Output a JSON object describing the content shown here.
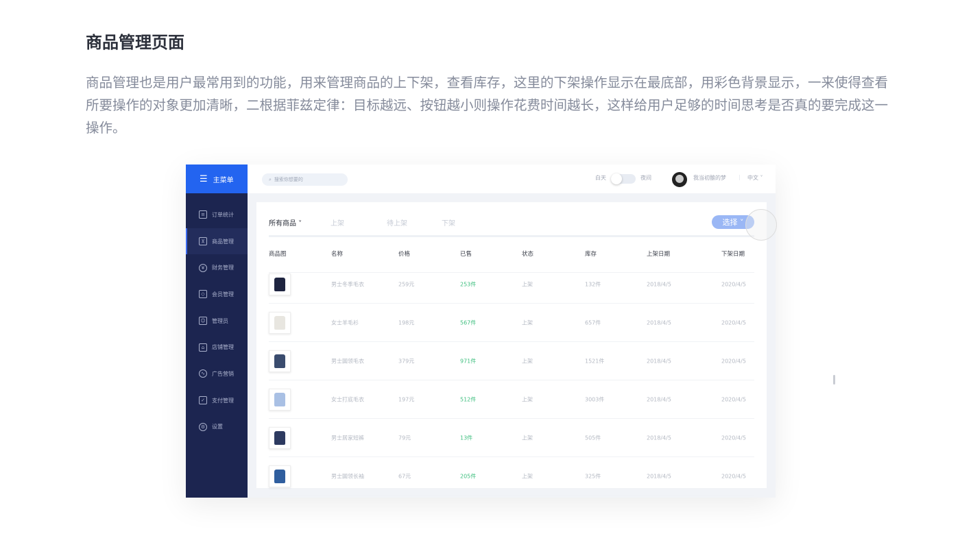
{
  "title": "商品管理页面",
  "description": "商品管理也是用户最常用到的功能，用来管理商品的上下架，查看库存，这里的下架操作显示在最底部，用彩色背景显示，一来使得查看所要操作的对象更加清晰，二根据菲兹定律：目标越远、按钮越小则操作花费时间越长，这样给用户足够的时间思考是否真的要完成这一操作。",
  "sidebar": {
    "menu_label": "主菜单",
    "items": [
      {
        "label": "订单统计",
        "icon": "document-icon"
      },
      {
        "label": "商品管理",
        "icon": "goods-icon",
        "active": true
      },
      {
        "label": "财务管理",
        "icon": "yen-icon"
      },
      {
        "label": "会员管理",
        "icon": "diamond-icon"
      },
      {
        "label": "管理员",
        "icon": "user-icon"
      },
      {
        "label": "店铺管理",
        "icon": "store-icon"
      },
      {
        "label": "广告营销",
        "icon": "pulse-icon"
      },
      {
        "label": "支付管理",
        "icon": "wallet-icon"
      },
      {
        "label": "设置",
        "icon": "gear-icon"
      }
    ]
  },
  "topbar": {
    "search_placeholder": "搜索你想要的",
    "day": "白天",
    "night": "夜间",
    "username": "我当初酿的梦",
    "language": "中文"
  },
  "tabs": [
    "所有商品",
    "上架",
    "待上架",
    "下架"
  ],
  "select_label": "选择",
  "colors": {
    "accent": "#2364f0",
    "sidebar": "#1c2550",
    "sold": "#3fbf7f"
  },
  "table": {
    "headers": [
      "商品图",
      "名称",
      "价格",
      "已售",
      "状态",
      "库存",
      "上架日期",
      "下架日期"
    ],
    "rows": [
      {
        "name": "男士冬季毛衣",
        "price": "259元",
        "sold": "253件",
        "status": "上架",
        "stock": "132件",
        "on": "2018/4/5",
        "off": "2020/4/5",
        "color": "#1e2440"
      },
      {
        "name": "女士羊毛衫",
        "price": "198元",
        "sold": "567件",
        "status": "上架",
        "stock": "657件",
        "on": "2018/4/5",
        "off": "2020/4/5",
        "color": "#e8e6e0"
      },
      {
        "name": "男士圆领毛衣",
        "price": "379元",
        "sold": "971件",
        "status": "上架",
        "stock": "1521件",
        "on": "2018/4/5",
        "off": "2020/4/5",
        "color": "#3a4c6e"
      },
      {
        "name": "女士打底毛衣",
        "price": "197元",
        "sold": "512件",
        "status": "上架",
        "stock": "3003件",
        "on": "2018/4/5",
        "off": "2020/4/5",
        "color": "#a9c0e4"
      },
      {
        "name": "男士居家短裤",
        "price": "79元",
        "sold": "13件",
        "status": "上架",
        "stock": "505件",
        "on": "2018/4/5",
        "off": "2020/4/5",
        "color": "#2d3a60"
      },
      {
        "name": "男士圆领长袖",
        "price": "67元",
        "sold": "205件",
        "status": "上架",
        "stock": "325件",
        "on": "2018/4/5",
        "off": "2020/4/5",
        "color": "#2f5e9e"
      }
    ]
  }
}
